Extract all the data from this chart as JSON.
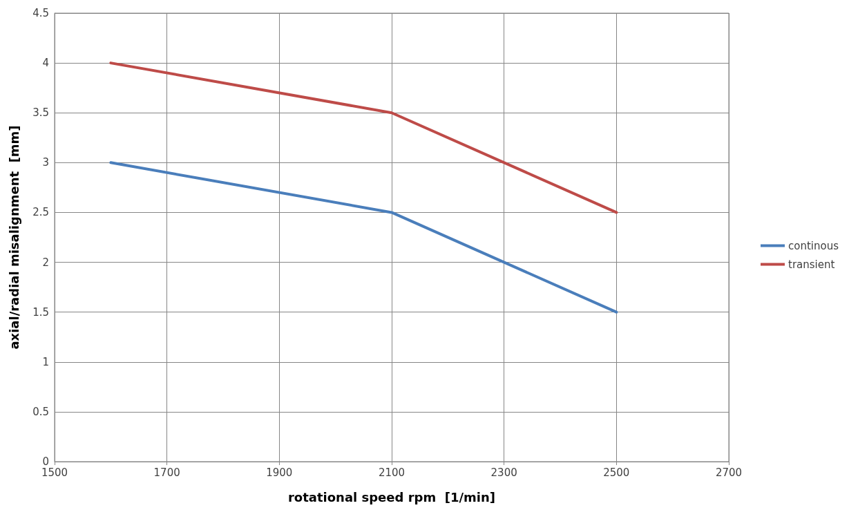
{
  "chart_data": {
    "type": "line",
    "xlabel": "rotational speed rpm  [1/min]",
    "ylabel": "axial/radial misalignment  [mm]",
    "series": [
      {
        "name": "continous",
        "color": "#4a7ebb",
        "x": [
          1600,
          2100,
          2500
        ],
        "values": [
          3,
          2.5,
          1.5
        ]
      },
      {
        "name": "transient",
        "color": "#be4b48",
        "x": [
          1600,
          2100,
          2500
        ],
        "values": [
          4,
          3.5,
          2.5
        ]
      }
    ],
    "xlim": [
      1500,
      2700
    ],
    "xticks": [
      1500,
      1700,
      1900,
      2100,
      2300,
      2500,
      2700
    ],
    "ylim": [
      0,
      4.5
    ],
    "yticks": [
      0,
      0.5,
      1,
      1.5,
      2,
      2.5,
      3,
      3.5,
      4,
      4.5
    ],
    "grid": true,
    "legend": "right",
    "marker": "none",
    "line_style": "solid"
  }
}
